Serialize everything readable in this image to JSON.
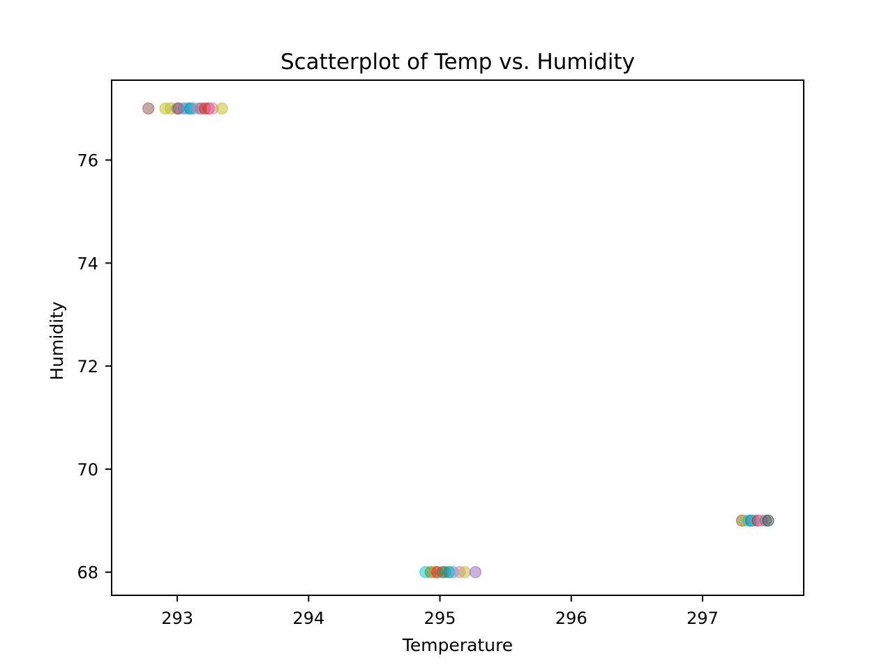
{
  "chart_data": {
    "type": "scatter",
    "title": "Scatterplot of Temp vs. Humidity",
    "xlabel": "Temperature",
    "ylabel": "Humidity",
    "xlim": [
      292.5,
      297.77
    ],
    "ylim": [
      67.55,
      77.55
    ],
    "grid": false,
    "xticks": [
      {
        "value": 293,
        "label": "293"
      },
      {
        "value": 294,
        "label": "294"
      },
      {
        "value": 295,
        "label": "295"
      },
      {
        "value": 296,
        "label": "296"
      },
      {
        "value": 297,
        "label": "297"
      }
    ],
    "yticks": [
      {
        "value": 68,
        "label": "68"
      },
      {
        "value": 70,
        "label": "70"
      },
      {
        "value": 72,
        "label": "72"
      },
      {
        "value": 74,
        "label": "74"
      },
      {
        "value": 76,
        "label": "76"
      }
    ],
    "point_opacity": 0.5,
    "points": [
      {
        "x": 292.78,
        "y": 77,
        "color": "#8c564b"
      },
      {
        "x": 292.91,
        "y": 77,
        "color": "#bcbd22"
      },
      {
        "x": 292.95,
        "y": 77,
        "color": "#bcbd22"
      },
      {
        "x": 293.0,
        "y": 77,
        "color": "#7f7f7f"
      },
      {
        "x": 293.01,
        "y": 77,
        "color": "#8c564b"
      },
      {
        "x": 293.05,
        "y": 77,
        "color": "#9467bd"
      },
      {
        "x": 293.08,
        "y": 77,
        "color": "#17becf"
      },
      {
        "x": 293.1,
        "y": 77,
        "color": "#1f77b4"
      },
      {
        "x": 293.12,
        "y": 77,
        "color": "#17becf"
      },
      {
        "x": 293.16,
        "y": 77,
        "color": "#e377c2"
      },
      {
        "x": 293.18,
        "y": 77,
        "color": "#7f7f7f"
      },
      {
        "x": 293.21,
        "y": 77,
        "color": "#d62728"
      },
      {
        "x": 293.24,
        "y": 77,
        "color": "#d62728"
      },
      {
        "x": 293.27,
        "y": 77,
        "color": "#e377c2"
      },
      {
        "x": 293.34,
        "y": 77,
        "color": "#bcbd22"
      },
      {
        "x": 294.89,
        "y": 68,
        "color": "#17becf"
      },
      {
        "x": 294.93,
        "y": 68,
        "color": "#2ca02c"
      },
      {
        "x": 294.96,
        "y": 68,
        "color": "#ff7f0e"
      },
      {
        "x": 294.98,
        "y": 68,
        "color": "#d62728"
      },
      {
        "x": 295.02,
        "y": 68,
        "color": "#8c564b"
      },
      {
        "x": 295.04,
        "y": 68,
        "color": "#2ca02c"
      },
      {
        "x": 295.07,
        "y": 68,
        "color": "#1f77b4"
      },
      {
        "x": 295.1,
        "y": 68,
        "color": "#17becf"
      },
      {
        "x": 295.15,
        "y": 68,
        "color": "#e377c2"
      },
      {
        "x": 295.19,
        "y": 68,
        "color": "#bcbd22"
      },
      {
        "x": 295.27,
        "y": 68,
        "color": "#9467bd"
      },
      {
        "x": 297.3,
        "y": 69,
        "color": "#8c564b"
      },
      {
        "x": 297.32,
        "y": 69,
        "color": "#bcbd22"
      },
      {
        "x": 297.35,
        "y": 69,
        "color": "#17becf"
      },
      {
        "x": 297.37,
        "y": 69,
        "color": "#1f77b4"
      },
      {
        "x": 297.39,
        "y": 69,
        "color": "#17becf"
      },
      {
        "x": 297.42,
        "y": 69,
        "color": "#d62728"
      },
      {
        "x": 297.45,
        "y": 69,
        "color": "#e377c2"
      },
      {
        "x": 297.48,
        "y": 69,
        "color": "#7f7f7f"
      },
      {
        "x": 297.5,
        "y": 69,
        "color": "#2f4f4f"
      }
    ]
  }
}
